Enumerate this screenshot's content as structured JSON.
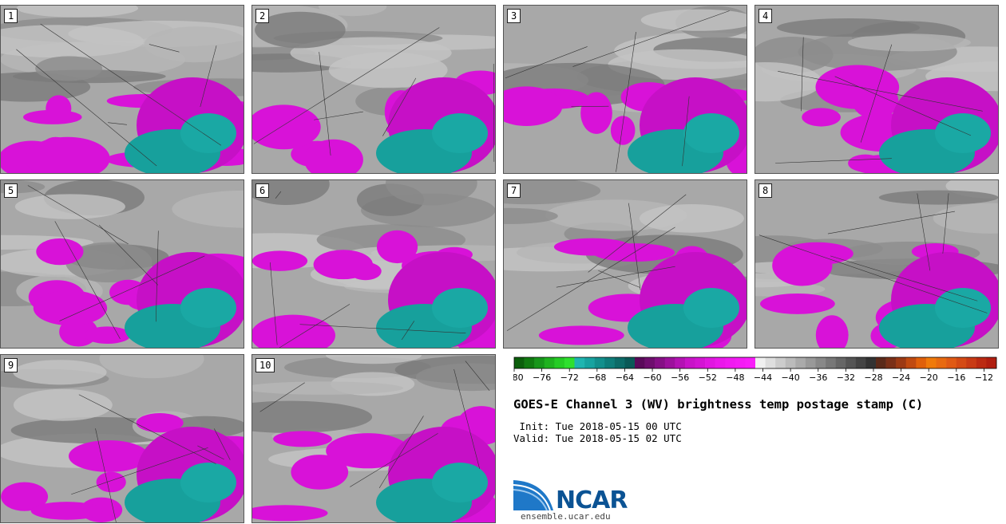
{
  "panels": [
    {
      "label": "1"
    },
    {
      "label": "2"
    },
    {
      "label": "3"
    },
    {
      "label": "4"
    },
    {
      "label": "5"
    },
    {
      "label": "6"
    },
    {
      "label": "7"
    },
    {
      "label": "8"
    },
    {
      "label": "9"
    },
    {
      "label": "10"
    }
  ],
  "colorbar": {
    "ticks": [
      "−80",
      "−76",
      "−72",
      "−68",
      "−64",
      "−60",
      "−56",
      "−52",
      "−48",
      "−44",
      "−40",
      "−36",
      "−32",
      "−28",
      "−24",
      "−20",
      "−16",
      "−12"
    ],
    "colors": [
      "#0b5e0b",
      "#107a10",
      "#17961a",
      "#1fb21f",
      "#25cc25",
      "#2ee02e",
      "#1fb5b0",
      "#17a3a0",
      "#128f8c",
      "#0e7d7a",
      "#0c6b68",
      "#0a5957",
      "#5a0a5a",
      "#6e0e6e",
      "#850f85",
      "#9c109c",
      "#b312b3",
      "#c813c8",
      "#d314d3",
      "#e016e0",
      "#ea18ea",
      "#f01af0",
      "#f41cf4",
      "#f81ef8",
      "#f0f0f0",
      "#dedede",
      "#cccccc",
      "#bbbbbb",
      "#aaaaaa",
      "#999999",
      "#888888",
      "#777777",
      "#666666",
      "#555555",
      "#444444",
      "#333333",
      "#5a2a1a",
      "#7a3018",
      "#9c3a14",
      "#c04a10",
      "#e0600a",
      "#f07a0a",
      "#e86a10",
      "#e05a14",
      "#d44a14",
      "#c83a14",
      "#bb2a12",
      "#b01e10"
    ]
  },
  "title": "GOES-E Channel 3 (WV) brightness temp postage stamp (C)",
  "init": " Init: Tue 2018-05-15 00 UTC",
  "valid": "Valid: Tue 2018-05-15 02 UTC",
  "logo": {
    "text": "NCAR",
    "url": "ensemble.ucar.edu"
  }
}
